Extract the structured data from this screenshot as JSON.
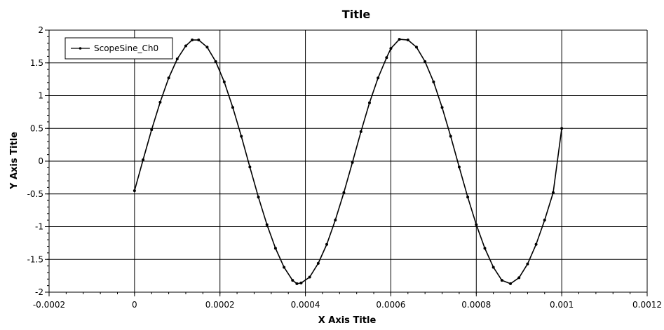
{
  "chart_data": {
    "type": "line",
    "title": "Title",
    "xlabel": "X Axis Title",
    "ylabel": "Y Axis Title",
    "xlim": [
      -0.0002,
      0.0012
    ],
    "ylim": [
      -2,
      2
    ],
    "grid": true,
    "legend_position": "top-left",
    "x_ticks": [
      "-0.0002",
      "0",
      "0.0002",
      "0.0004",
      "0.0006",
      "0.0008",
      "0.001",
      "0.0012"
    ],
    "y_ticks": [
      "2",
      "1.5",
      "1",
      "0.5",
      "0",
      "-0.5",
      "-1",
      "-1.5",
      "-2"
    ],
    "series": [
      {
        "name": "ScopeSine_Ch0",
        "color": "#000000",
        "marker": "dot",
        "x": [
          0,
          2e-05,
          4e-05,
          6e-05,
          8e-05,
          0.0001,
          0.00012,
          0.000135,
          0.00015,
          0.00017,
          0.00019,
          0.00021,
          0.00023,
          0.00025,
          0.00027,
          0.00029,
          0.00031,
          0.00033,
          0.00035,
          0.00037,
          0.00038,
          0.00039,
          0.00041,
          0.00043,
          0.00045,
          0.00047,
          0.00049,
          0.00051,
          0.00053,
          0.00055,
          0.00057,
          0.00059,
          0.0006,
          0.00062,
          0.00064,
          0.00066,
          0.00068,
          0.0007,
          0.00072,
          0.00074,
          0.00076,
          0.00078,
          0.0008,
          0.00082,
          0.00084,
          0.00086,
          0.00088,
          0.0009,
          0.00092,
          0.00094,
          0.00096,
          0.00098,
          0.001
        ],
        "y": [
          -0.45,
          0.02,
          0.48,
          0.9,
          1.27,
          1.56,
          1.76,
          1.85,
          1.85,
          1.74,
          1.52,
          1.21,
          0.82,
          0.38,
          -0.09,
          -0.55,
          -0.97,
          -1.33,
          -1.62,
          -1.82,
          -1.87,
          -1.86,
          -1.77,
          -1.56,
          -1.27,
          -0.9,
          -0.48,
          -0.02,
          0.45,
          0.89,
          1.27,
          1.58,
          1.72,
          1.86,
          1.85,
          1.74,
          1.52,
          1.21,
          0.82,
          0.38,
          -0.09,
          -0.55,
          -0.97,
          -1.33,
          -1.62,
          -1.82,
          -1.87,
          -1.78,
          -1.57,
          -1.27,
          -0.9,
          -0.48,
          0.5
        ]
      }
    ]
  }
}
